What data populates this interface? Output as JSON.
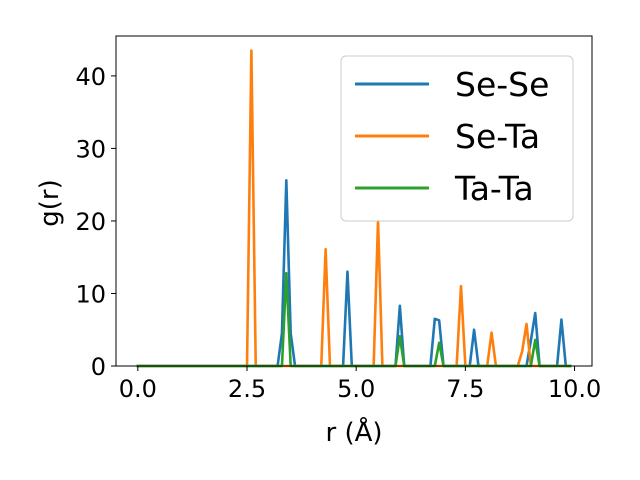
{
  "chart_data": {
    "type": "line",
    "xlabel": "r (Å)",
    "ylabel": "g(r)",
    "xlim": [
      -0.5,
      10.4
    ],
    "ylim": [
      0,
      45.5
    ],
    "x_ticks": [
      0.0,
      2.5,
      5.0,
      7.5,
      10.0
    ],
    "x_tick_labels": [
      "0.0",
      "2.5",
      "5.0",
      "7.5",
      "10.0"
    ],
    "y_ticks": [
      0,
      10,
      20,
      30,
      40
    ],
    "y_tick_labels": [
      "0",
      "10",
      "20",
      "30",
      "40"
    ],
    "grid": false,
    "legend_position": "top-right",
    "series": [
      {
        "name": "Se-Se",
        "color": "#1f77b4",
        "points": [
          [
            0.0,
            0
          ],
          [
            3.2,
            0
          ],
          [
            3.3,
            4.5
          ],
          [
            3.4,
            25.6
          ],
          [
            3.5,
            4.5
          ],
          [
            3.6,
            0
          ],
          [
            4.7,
            0
          ],
          [
            4.8,
            13
          ],
          [
            4.9,
            0
          ],
          [
            5.9,
            0
          ],
          [
            6.0,
            8.3
          ],
          [
            6.1,
            0
          ],
          [
            6.7,
            0
          ],
          [
            6.8,
            6.5
          ],
          [
            6.9,
            6.3
          ],
          [
            7.0,
            0
          ],
          [
            7.6,
            0
          ],
          [
            7.7,
            5
          ],
          [
            7.8,
            0
          ],
          [
            8.9,
            0
          ],
          [
            9.0,
            3.5
          ],
          [
            9.1,
            7.3
          ],
          [
            9.2,
            0
          ],
          [
            9.6,
            0
          ],
          [
            9.7,
            6.4
          ],
          [
            9.8,
            0
          ],
          [
            9.9,
            0
          ]
        ]
      },
      {
        "name": "Se-Ta",
        "color": "#ff7f0e",
        "points": [
          [
            0.0,
            0
          ],
          [
            2.5,
            0
          ],
          [
            2.6,
            43.5
          ],
          [
            2.7,
            0
          ],
          [
            4.2,
            0
          ],
          [
            4.3,
            16.1
          ],
          [
            4.4,
            0
          ],
          [
            5.4,
            0
          ],
          [
            5.5,
            20
          ],
          [
            5.6,
            0
          ],
          [
            7.3,
            0
          ],
          [
            7.4,
            11
          ],
          [
            7.5,
            0
          ],
          [
            8.0,
            0
          ],
          [
            8.1,
            4.6
          ],
          [
            8.2,
            0
          ],
          [
            8.7,
            0
          ],
          [
            8.8,
            2
          ],
          [
            8.9,
            5.8
          ],
          [
            9.0,
            0
          ],
          [
            9.9,
            0
          ]
        ]
      },
      {
        "name": "Ta-Ta",
        "color": "#2ca02c",
        "points": [
          [
            0.0,
            0
          ],
          [
            3.3,
            0
          ],
          [
            3.4,
            12.8
          ],
          [
            3.5,
            0
          ],
          [
            5.9,
            0
          ],
          [
            6.0,
            4.1
          ],
          [
            6.1,
            0
          ],
          [
            6.8,
            0
          ],
          [
            6.9,
            3.2
          ],
          [
            7.0,
            0
          ],
          [
            9.0,
            0
          ],
          [
            9.1,
            3.6
          ],
          [
            9.2,
            0
          ],
          [
            9.9,
            0
          ]
        ]
      }
    ]
  }
}
